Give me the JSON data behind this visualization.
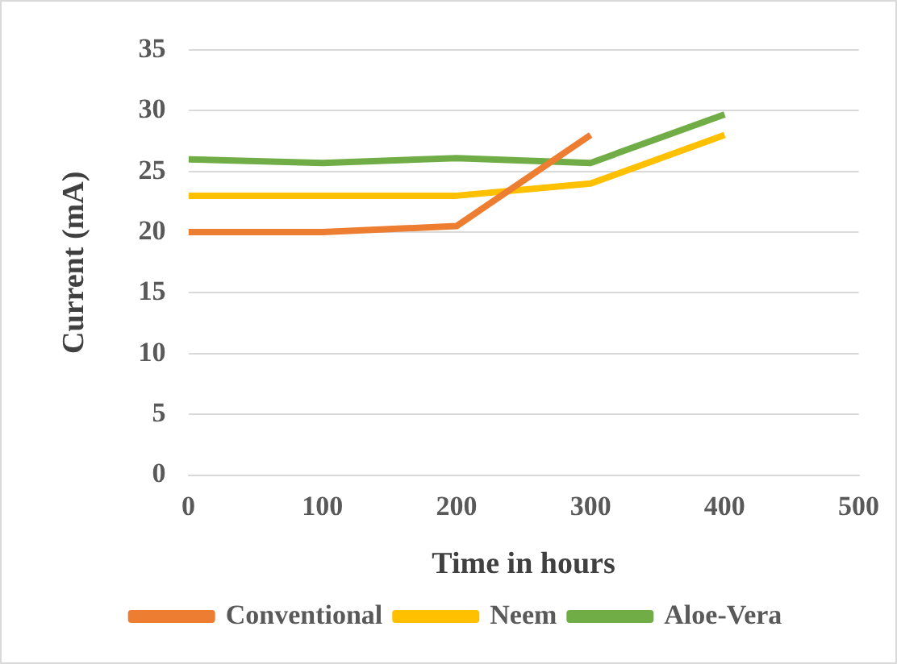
{
  "chart_data": {
    "type": "line",
    "xlabel": "Time in hours",
    "ylabel": "Current (mA)",
    "x": [
      0,
      100,
      200,
      300,
      400
    ],
    "xlim": [
      0,
      500
    ],
    "xticks": [
      0,
      100,
      200,
      300,
      400,
      500
    ],
    "ylim": [
      0,
      35
    ],
    "yticks": [
      0,
      5,
      10,
      15,
      20,
      25,
      30,
      35
    ],
    "grid": "y",
    "legend": "bottom",
    "marker": "none",
    "series": [
      {
        "name": "Conventional",
        "color": "#ed7d31",
        "x": [
          0,
          100,
          200,
          300
        ],
        "values": [
          20,
          20,
          20.5,
          28
        ]
      },
      {
        "name": "Neem",
        "color": "#ffc000",
        "values": [
          23,
          23,
          23,
          24,
          28
        ]
      },
      {
        "name": "Aloe-Vera",
        "color": "#70ad47",
        "values": [
          26,
          25.7,
          26.1,
          25.7,
          29.7
        ]
      }
    ]
  }
}
